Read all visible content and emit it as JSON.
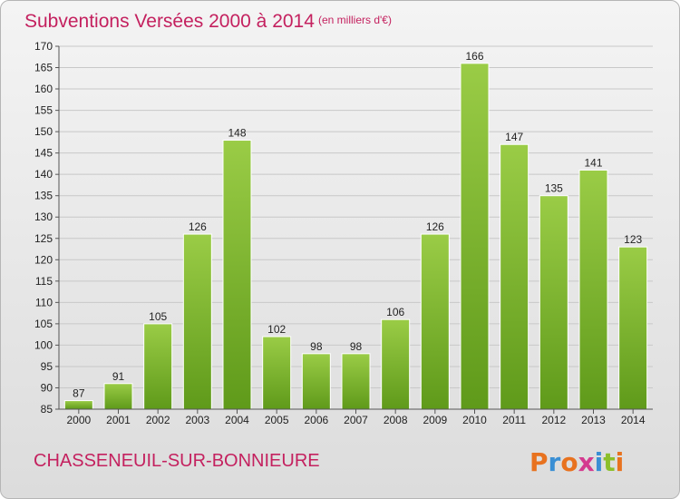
{
  "title": "Subventions Versées 2000 à 2014",
  "unit": "(en milliers d'€)",
  "commune": "CHASSENEUIL-SUR-BONNIEURE",
  "logo": {
    "text": "Proxiti",
    "colors": [
      "#e8721f",
      "#3a8fd4",
      "#e8721f",
      "#d43a8f",
      "#3a8fd4",
      "#8cbf2a",
      "#e8721f"
    ]
  },
  "colors": {
    "bar_top": "#9acc46",
    "bar_bottom": "#5f9a1a",
    "accent": "#c4215f"
  },
  "chart_data": {
    "type": "bar",
    "categories": [
      "2000",
      "2001",
      "2002",
      "2003",
      "2004",
      "2005",
      "2006",
      "2007",
      "2008",
      "2009",
      "2010",
      "2011",
      "2012",
      "2013",
      "2014"
    ],
    "values": [
      87,
      91,
      105,
      126,
      148,
      102,
      98,
      98,
      106,
      126,
      166,
      147,
      135,
      141,
      123
    ],
    "ylim": [
      85,
      170
    ],
    "yticks": [
      85,
      90,
      95,
      100,
      105,
      110,
      115,
      120,
      125,
      130,
      135,
      140,
      145,
      150,
      155,
      160,
      165,
      170
    ],
    "grid": true
  }
}
